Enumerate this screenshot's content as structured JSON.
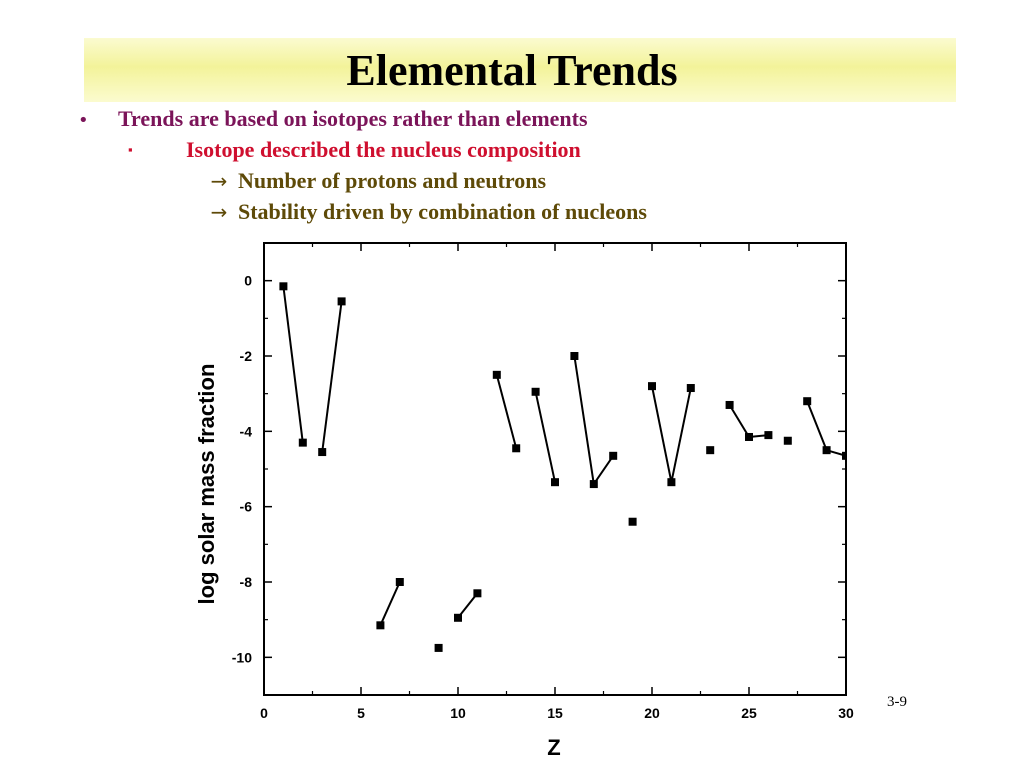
{
  "slide": {
    "title": "Elemental Trends",
    "bullets": {
      "level1": {
        "marker": "•",
        "text": "Trends are based on isotopes rather than elements"
      },
      "level2": {
        "marker": "▪",
        "text": "Isotope described the nucleus composition"
      },
      "level3": [
        {
          "marker": "→",
          "text": "Number of protons and neutrons"
        },
        {
          "marker": "→",
          "text": "Stability driven by combination of nucleons"
        }
      ]
    },
    "slide_number": "3-9"
  },
  "colors": {
    "title_band": "#f3f39a",
    "level1_text": "#7b1459",
    "level2_text": "#cf0f2f",
    "level3_text": "#5e4a08",
    "markers": "#000000"
  },
  "chart_data": {
    "type": "scatter",
    "title": "",
    "xlabel": "Z",
    "ylabel": "log solar mass fraction",
    "xlim": [
      0,
      30
    ],
    "ylim": [
      -11,
      1
    ],
    "xticks": [
      0,
      5,
      10,
      15,
      20,
      25,
      30
    ],
    "yticks": [
      0,
      -2,
      -4,
      -6,
      -8,
      -10
    ],
    "grid": false,
    "marker": "square",
    "points": [
      {
        "z": 1,
        "y": -0.15
      },
      {
        "z": 2,
        "y": -4.3
      },
      {
        "z": 3,
        "y": -4.55
      },
      {
        "z": 4,
        "y": -0.55
      },
      {
        "z": 6,
        "y": -9.15
      },
      {
        "z": 7,
        "y": -8.0
      },
      {
        "z": 9,
        "y": -9.75
      },
      {
        "z": 10,
        "y": -8.95
      },
      {
        "z": 11,
        "y": -8.3
      },
      {
        "z": 12,
        "y": -2.5
      },
      {
        "z": 13,
        "y": -4.45
      },
      {
        "z": 14,
        "y": -2.95
      },
      {
        "z": 15,
        "y": -5.35
      },
      {
        "z": 16,
        "y": -2.0
      },
      {
        "z": 17,
        "y": -5.4
      },
      {
        "z": 18,
        "y": -4.65
      },
      {
        "z": 19,
        "y": -6.4
      },
      {
        "z": 20,
        "y": -2.8
      },
      {
        "z": 21,
        "y": -5.35
      },
      {
        "z": 22,
        "y": -2.85
      },
      {
        "z": 23,
        "y": -4.5
      },
      {
        "z": 24,
        "y": -3.3
      },
      {
        "z": 25,
        "y": -4.15
      },
      {
        "z": 26,
        "y": -4.1
      },
      {
        "z": 27,
        "y": -4.25
      },
      {
        "z": 28,
        "y": -3.2
      },
      {
        "z": 29,
        "y": -4.5
      },
      {
        "z": 30,
        "y": -4.65
      }
    ],
    "connected_segments": [
      [
        1,
        2
      ],
      [
        3,
        4
      ],
      [
        6,
        7
      ],
      [
        10,
        11
      ],
      [
        12,
        13
      ],
      [
        14,
        15
      ],
      [
        16,
        17
      ],
      [
        17,
        18
      ],
      [
        20,
        21
      ],
      [
        21,
        22
      ],
      [
        24,
        25
      ],
      [
        25,
        26
      ],
      [
        28,
        29
      ],
      [
        29,
        30
      ]
    ]
  }
}
